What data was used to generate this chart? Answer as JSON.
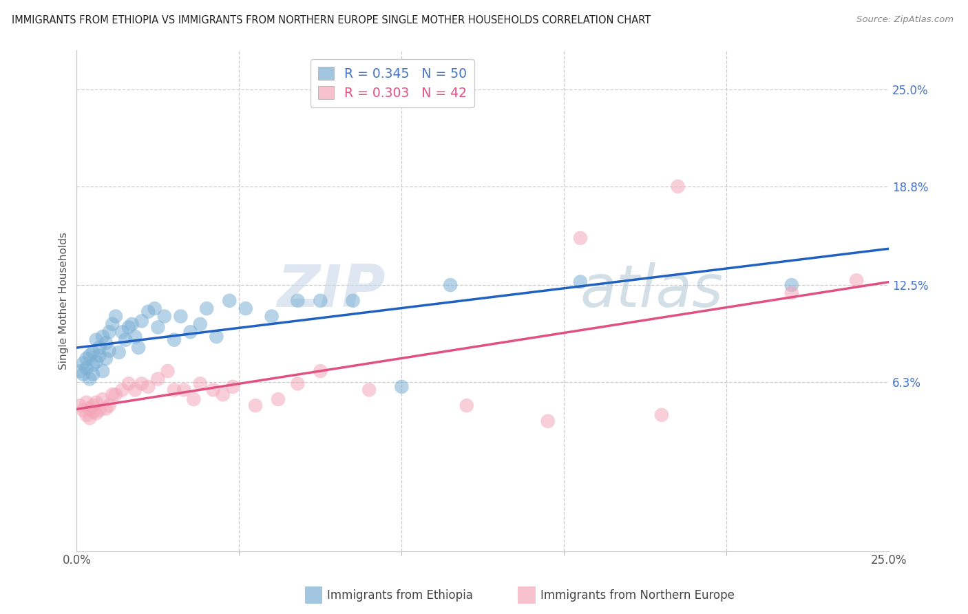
{
  "title": "IMMIGRANTS FROM ETHIOPIA VS IMMIGRANTS FROM NORTHERN EUROPE SINGLE MOTHER HOUSEHOLDS CORRELATION CHART",
  "source": "Source: ZipAtlas.com",
  "ylabel": "Single Mother Households",
  "ytick_labels": [
    "6.3%",
    "12.5%",
    "18.8%",
    "25.0%"
  ],
  "ytick_values": [
    0.063,
    0.125,
    0.188,
    0.25
  ],
  "xlim": [
    0.0,
    0.25
  ],
  "ylim": [
    -0.045,
    0.275
  ],
  "legend_blue_r": "R = 0.345",
  "legend_blue_n": "N = 50",
  "legend_pink_r": "R = 0.303",
  "legend_pink_n": "N = 42",
  "blue_color": "#7bafd4",
  "pink_color": "#f4a7b9",
  "line_blue": "#2060c0",
  "line_pink": "#e05080",
  "blue_label": "Immigrants from Ethiopia",
  "pink_label": "Immigrants from Northern Europe",
  "watermark_zip": "ZIP",
  "watermark_atlas": "atlas",
  "blue_scatter_x": [
    0.001,
    0.002,
    0.002,
    0.003,
    0.003,
    0.004,
    0.004,
    0.005,
    0.005,
    0.005,
    0.006,
    0.006,
    0.007,
    0.007,
    0.008,
    0.008,
    0.009,
    0.009,
    0.01,
    0.01,
    0.011,
    0.012,
    0.013,
    0.014,
    0.015,
    0.016,
    0.017,
    0.018,
    0.019,
    0.02,
    0.022,
    0.024,
    0.025,
    0.027,
    0.03,
    0.032,
    0.035,
    0.038,
    0.04,
    0.043,
    0.047,
    0.052,
    0.06,
    0.068,
    0.075,
    0.085,
    0.1,
    0.115,
    0.22,
    0.155
  ],
  "blue_scatter_y": [
    0.07,
    0.068,
    0.075,
    0.072,
    0.078,
    0.065,
    0.08,
    0.068,
    0.074,
    0.082,
    0.09,
    0.076,
    0.085,
    0.08,
    0.092,
    0.07,
    0.088,
    0.078,
    0.083,
    0.095,
    0.1,
    0.105,
    0.082,
    0.095,
    0.09,
    0.098,
    0.1,
    0.092,
    0.085,
    0.102,
    0.108,
    0.11,
    0.098,
    0.105,
    0.09,
    0.105,
    0.095,
    0.1,
    0.11,
    0.092,
    0.115,
    0.11,
    0.105,
    0.115,
    0.115,
    0.115,
    0.06,
    0.125,
    0.125,
    0.127
  ],
  "pink_scatter_x": [
    0.001,
    0.002,
    0.003,
    0.003,
    0.004,
    0.004,
    0.005,
    0.005,
    0.006,
    0.006,
    0.007,
    0.008,
    0.009,
    0.01,
    0.011,
    0.012,
    0.014,
    0.016,
    0.018,
    0.02,
    0.022,
    0.025,
    0.028,
    0.03,
    0.033,
    0.036,
    0.038,
    0.042,
    0.045,
    0.048,
    0.055,
    0.062,
    0.068,
    0.075,
    0.09,
    0.12,
    0.145,
    0.155,
    0.185,
    0.22,
    0.24,
    0.18
  ],
  "pink_scatter_y": [
    0.048,
    0.045,
    0.042,
    0.05,
    0.04,
    0.046,
    0.044,
    0.048,
    0.043,
    0.05,
    0.045,
    0.052,
    0.046,
    0.048,
    0.055,
    0.055,
    0.058,
    0.062,
    0.058,
    0.062,
    0.06,
    0.065,
    0.07,
    0.058,
    0.058,
    0.052,
    0.062,
    0.058,
    0.055,
    0.06,
    0.048,
    0.052,
    0.062,
    0.07,
    0.058,
    0.048,
    0.038,
    0.155,
    0.188,
    0.12,
    0.128,
    0.042
  ]
}
